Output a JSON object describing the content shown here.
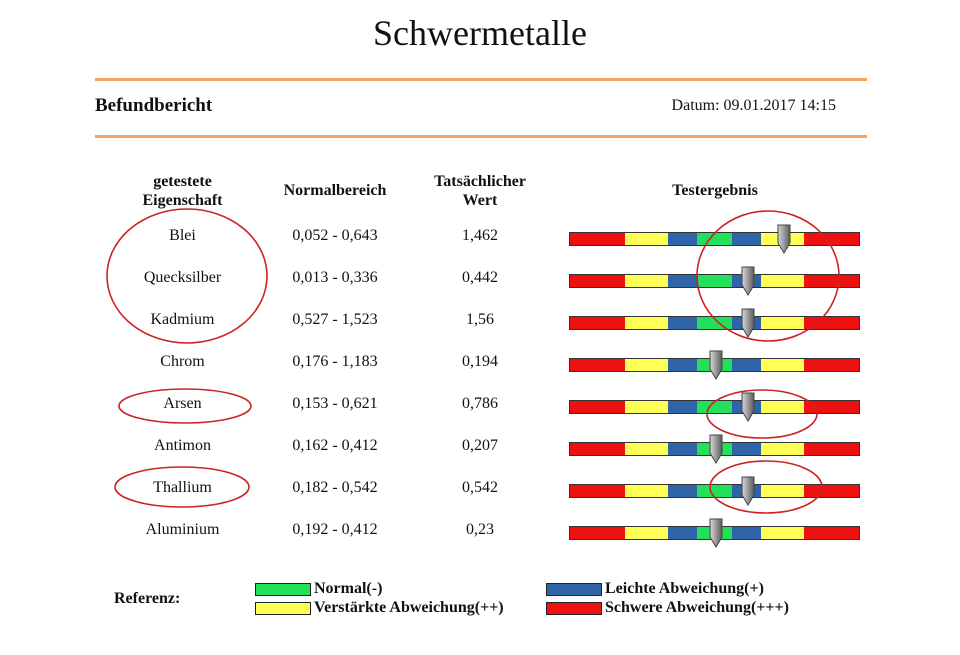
{
  "header": {
    "title": "Schwermetalle",
    "report_title": "Befundbericht",
    "date_label": "Datum:",
    "date_value": "09.01.2017 14:15"
  },
  "table": {
    "columns": {
      "property_line1": "getestete",
      "property_line2": "Eigenschaft",
      "range": "Normalbereich",
      "value_line1": "Tatsächlicher",
      "value_line2": "Wert",
      "result": "Testergebnis"
    },
    "rows": [
      {
        "name": "Blei",
        "range": "0,052 - 0,643",
        "value": "1,462",
        "marker_pos": 0.74
      },
      {
        "name": "Quecksilber",
        "range": "0,013 - 0,336",
        "value": "0,442",
        "marker_pos": 0.615
      },
      {
        "name": "Kadmium",
        "range": "0,527 - 1,523",
        "value": "1,56",
        "marker_pos": 0.615
      },
      {
        "name": "Chrom",
        "range": "0,176 - 1,183",
        "value": "0,194",
        "marker_pos": 0.505
      },
      {
        "name": "Arsen",
        "range": "0,153 - 0,621",
        "value": "0,786",
        "marker_pos": 0.615
      },
      {
        "name": "Antimon",
        "range": "0,162 - 0,412",
        "value": "0,207",
        "marker_pos": 0.505
      },
      {
        "name": "Thallium",
        "range": "0,182 - 0,542",
        "value": "0,542",
        "marker_pos": 0.615
      },
      {
        "name": "Aluminium",
        "range": "0,192 - 0,412",
        "value": "0,23",
        "marker_pos": 0.505
      }
    ],
    "bar_segments": [
      {
        "color": "#ee1111",
        "fraction": 0.19
      },
      {
        "color": "#ffff55",
        "fraction": 0.15
      },
      {
        "color": "#2f65a8",
        "fraction": 0.1
      },
      {
        "color": "#22e05a",
        "fraction": 0.12
      },
      {
        "color": "#2f65a8",
        "fraction": 0.1
      },
      {
        "color": "#ffff55",
        "fraction": 0.15
      },
      {
        "color": "#ee1111",
        "fraction": 0.19
      }
    ]
  },
  "legend": {
    "label": "Referenz:",
    "items": [
      {
        "text": "Normal(-)",
        "color": "#22e05a"
      },
      {
        "text": "Leichte Abweichung(+)",
        "color": "#2f65a8"
      },
      {
        "text": "Verstärkte Abweichung(++)",
        "color": "#ffff55"
      },
      {
        "text": "Schwere Abweichung(+++)",
        "color": "#ee1111"
      }
    ]
  },
  "colors": {
    "rule": "#f3a35a",
    "annotation": "#cc2222",
    "marker": "#9a9a9a"
  }
}
